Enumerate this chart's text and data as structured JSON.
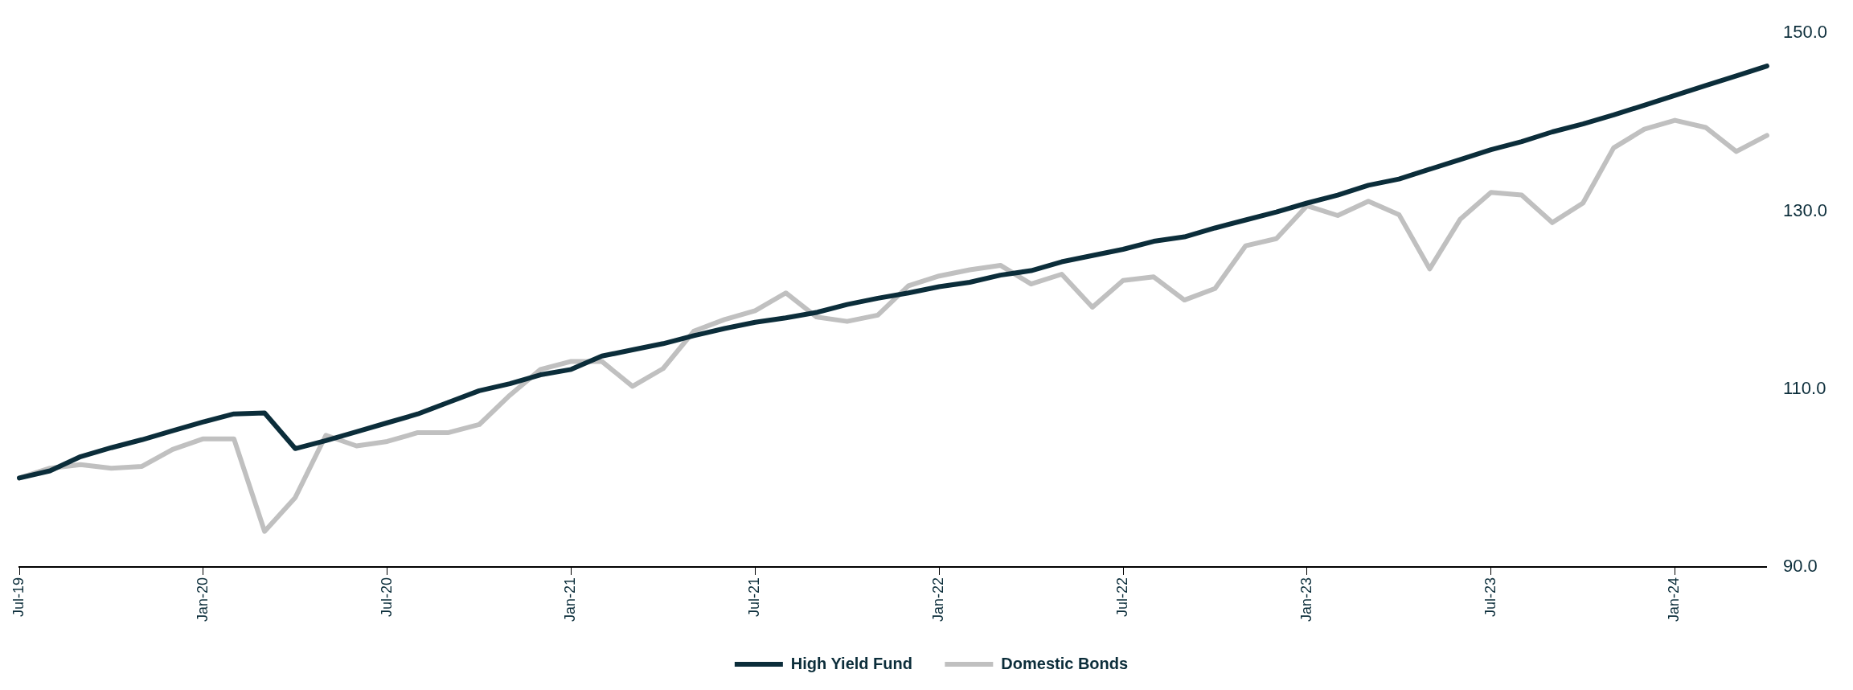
{
  "chart_data": {
    "type": "line",
    "categories": [
      "Jul-19",
      null,
      null,
      null,
      null,
      null,
      "Jan-20",
      null,
      null,
      null,
      null,
      null,
      "Jul-20",
      null,
      null,
      null,
      null,
      null,
      "Jan-21",
      null,
      null,
      null,
      null,
      null,
      "Jul-21",
      null,
      null,
      null,
      null,
      null,
      "Jan-22",
      null,
      null,
      null,
      null,
      null,
      "Jul-22",
      null,
      null,
      null,
      null,
      null,
      "Jan-23",
      null,
      null,
      null,
      null,
      null,
      "Jul-23",
      null,
      null,
      null,
      null,
      null,
      "Jan-24",
      null,
      null,
      null
    ],
    "series": [
      {
        "name": "High Yield Fund",
        "color": "#0b2d3a",
        "values": [
          100,
          100.8,
          102.4,
          103.4,
          104.3,
          105.3,
          106.3,
          107.2,
          107.3,
          103.3,
          104.2,
          105.2,
          106.2,
          107.2,
          108.5,
          109.8,
          110.6,
          111.6,
          112.2,
          113.7,
          114.4,
          115.1,
          116.0,
          116.8,
          117.5,
          118.0,
          118.6,
          119.5,
          120.2,
          120.8,
          121.5,
          122.0,
          122.8,
          123.3,
          124.3,
          125.0,
          125.7,
          126.6,
          127.1,
          128.1,
          129.0,
          129.9,
          130.9,
          131.8,
          132.9,
          133.6,
          134.7,
          135.8,
          136.9,
          137.8,
          138.9,
          139.8,
          140.8,
          141.9,
          143.0,
          144.1,
          145.2,
          146.3
        ]
      },
      {
        "name": "Domestic Bonds",
        "color": "#c0c0c0",
        "values": [
          100,
          101.1,
          101.5,
          101.1,
          101.3,
          103.2,
          104.4,
          104.4,
          94.0,
          97.8,
          104.8,
          103.6,
          104.1,
          105.1,
          105.1,
          106.0,
          109.3,
          112.2,
          113.1,
          113.1,
          110.3,
          112.3,
          116.5,
          117.8,
          118.8,
          120.8,
          118.1,
          117.6,
          118.3,
          121.6,
          122.7,
          123.4,
          123.9,
          121.8,
          122.9,
          119.2,
          122.2,
          122.6,
          120.0,
          121.3,
          126.1,
          126.9,
          130.6,
          129.5,
          131.1,
          129.6,
          123.5,
          129.1,
          132.1,
          131.8,
          128.7,
          130.9,
          137.1,
          139.2,
          140.2,
          139.4,
          136.7,
          138.5
        ]
      }
    ],
    "ylim": [
      90,
      150
    ],
    "yticks": [
      {
        "value": 90,
        "label": "90.0"
      },
      {
        "value": 110,
        "label": "110.0"
      },
      {
        "value": 130,
        "label": "130.0"
      },
      {
        "value": 150,
        "label": "150.0"
      }
    ],
    "grid": false,
    "legend": "bottom",
    "marker": "none",
    "line_style": "solid"
  }
}
